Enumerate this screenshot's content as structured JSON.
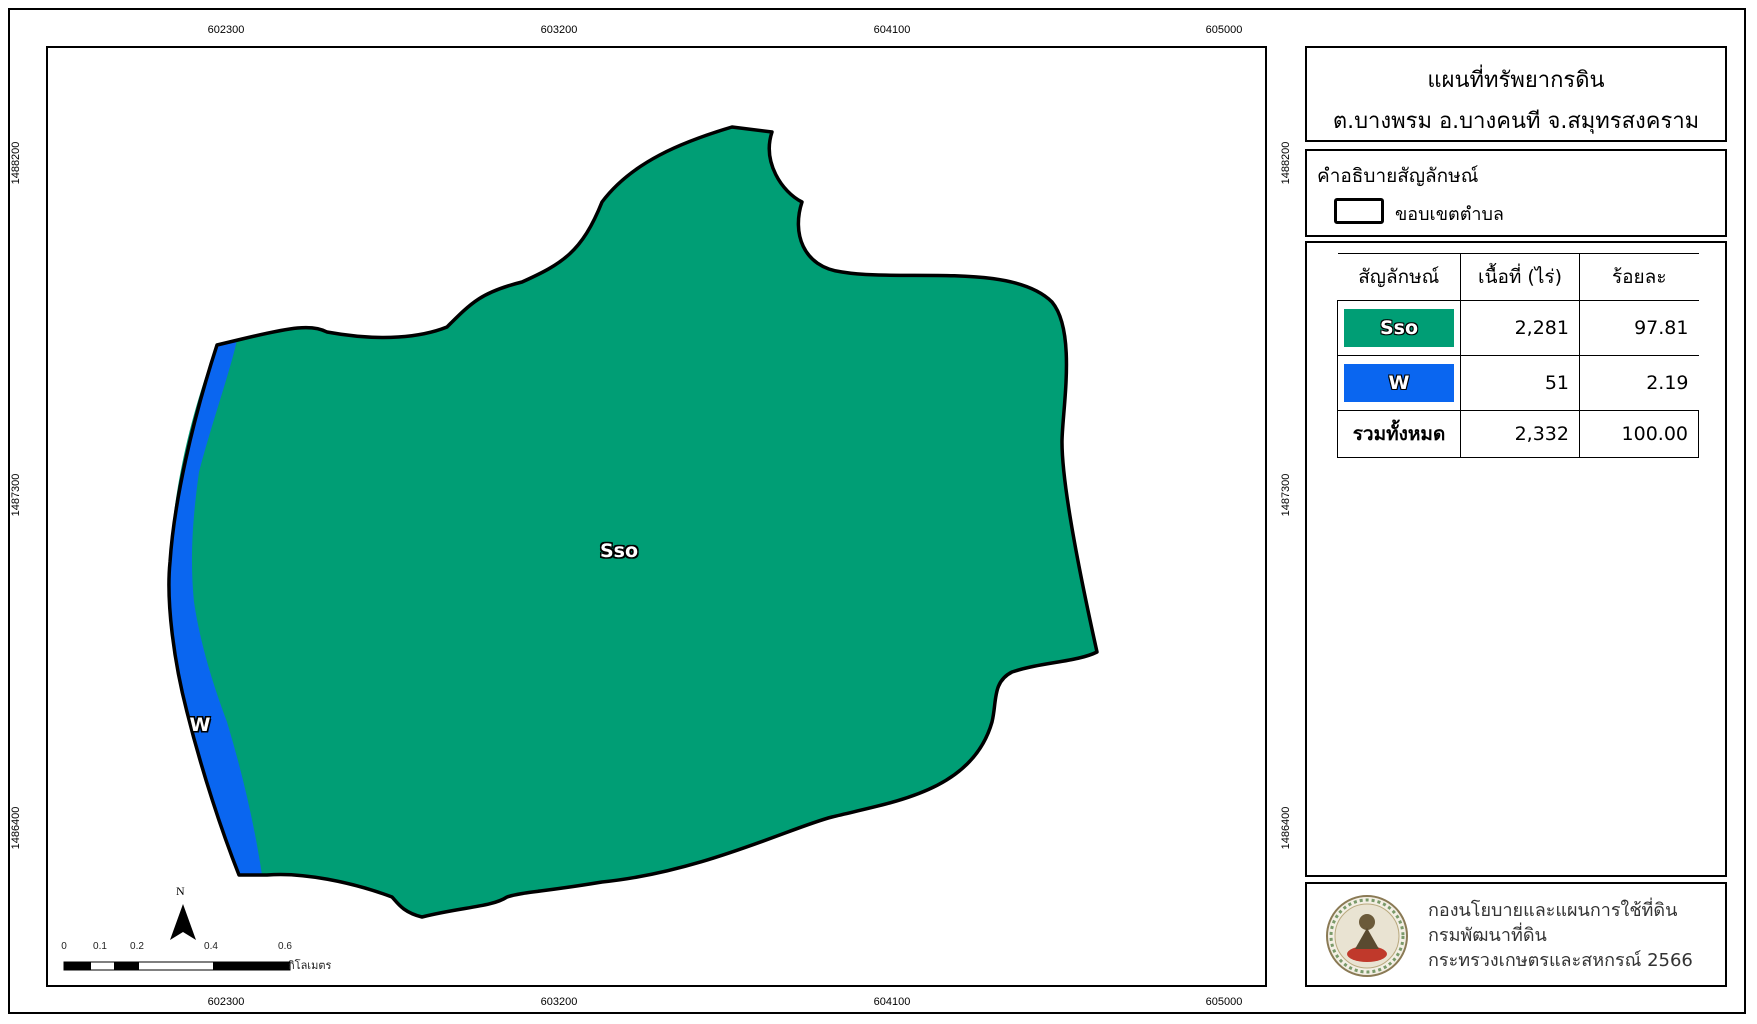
{
  "title": {
    "line1": "แผนที่ทรัพยากรดิน",
    "line2": "ต.บางพรม อ.บางคนที จ.สมุทรสงคราม"
  },
  "legend": {
    "heading": "คำอธิบายสัญลักษณ์",
    "boundary_label": "ขอบเขตตำบล"
  },
  "table": {
    "headers": [
      "สัญลักษณ์",
      "เนื้อที่ (ไร่)",
      "ร้อยละ"
    ],
    "rows": [
      {
        "symbol": "Sso",
        "area": "2,281",
        "percent": "97.81",
        "color": "#009E75"
      },
      {
        "symbol": "W",
        "area": "51",
        "percent": "2.19",
        "color": "#0A66F0"
      }
    ],
    "total": {
      "label": "รวมทั้งหมด",
      "area": "2,332",
      "percent": "100.00"
    }
  },
  "credit": {
    "line1": "กองนโยบายและแผนการใช้ที่ดิน",
    "line2": "กรมพัฒนาที่ดิน",
    "line3": "กระทรวงเกษตรและสหกรณ์ 2566"
  },
  "grid": {
    "x_ticks": [
      "602300",
      "603200",
      "604100",
      "605000"
    ],
    "y_ticks": [
      "1488200",
      "1487300",
      "1486400"
    ]
  },
  "map_labels": {
    "main": "Sso",
    "water": "W"
  },
  "scalebar": {
    "ticks": [
      "0",
      "0.1",
      "0.2",
      "0.4",
      "0.6"
    ],
    "unit": "กิโลเมตร"
  },
  "north": "N",
  "colors": {
    "soil_sso": "#009E75",
    "water_w": "#0A66F0",
    "boundary": "#000000"
  }
}
